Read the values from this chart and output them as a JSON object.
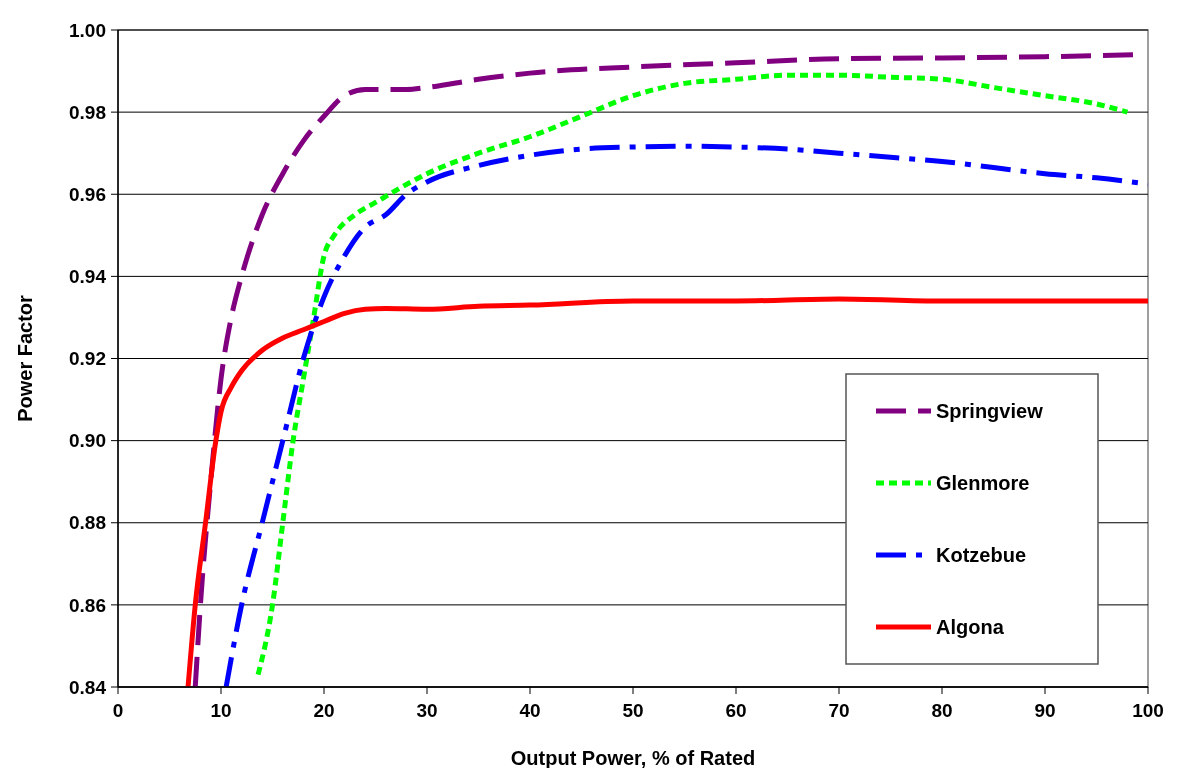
{
  "chart_data": {
    "type": "line",
    "xlabel": "Output Power, % of Rated",
    "ylabel": "Power Factor",
    "xlim": [
      0,
      100
    ],
    "xticks": [
      0,
      10,
      20,
      30,
      40,
      50,
      60,
      70,
      80,
      90,
      100
    ],
    "ylim": [
      0.84,
      1.0
    ],
    "yticks": [
      {
        "value": 0.84,
        "label": "0.84"
      },
      {
        "value": 0.86,
        "label": "0.86"
      },
      {
        "value": 0.88,
        "label": "0.88"
      },
      {
        "value": 0.9,
        "label": "0.90"
      },
      {
        "value": 0.92,
        "label": "0.92"
      },
      {
        "value": 0.94,
        "label": "0.94"
      },
      {
        "value": 0.96,
        "label": "0.96"
      },
      {
        "value": 0.98,
        "label": "0.98"
      },
      {
        "value": 1.0,
        "label": "1.00"
      }
    ],
    "grid": "y",
    "legend": "right",
    "marker": "none",
    "series": [
      {
        "name": "Springview",
        "color": "#800080",
        "line_style": "dashed",
        "x": [
          7.5,
          8,
          9,
          10,
          11,
          12,
          14,
          16,
          18,
          20,
          22,
          24,
          28,
          30,
          35,
          40,
          50,
          60,
          70,
          80,
          90,
          99
        ],
        "values": [
          0.84,
          0.86,
          0.89,
          0.915,
          0.93,
          0.94,
          0.955,
          0.965,
          0.973,
          0.979,
          0.984,
          0.9855,
          0.9855,
          0.986,
          0.988,
          0.9895,
          0.991,
          0.992,
          0.993,
          0.9932,
          0.9935,
          0.994
        ]
      },
      {
        "name": "Glenmore",
        "color": "#00ff00",
        "line_style": "dotted",
        "x": [
          13.6,
          15,
          16,
          17,
          18,
          19,
          20,
          21,
          23,
          25,
          30,
          35,
          40,
          45,
          50,
          55,
          60,
          65,
          70,
          75,
          80,
          85,
          90,
          95,
          98
        ],
        "values": [
          0.843,
          0.86,
          0.88,
          0.9,
          0.915,
          0.93,
          0.945,
          0.95,
          0.955,
          0.958,
          0.965,
          0.97,
          0.974,
          0.979,
          0.984,
          0.987,
          0.988,
          0.989,
          0.989,
          0.9885,
          0.988,
          0.986,
          0.984,
          0.982,
          0.98
        ]
      },
      {
        "name": "Kotzebue",
        "color": "#0000ff",
        "line_style": "dashdot",
        "x": [
          10.5,
          12,
          14,
          16,
          18,
          20,
          22,
          24,
          26,
          28,
          30,
          35,
          40,
          45,
          50,
          55,
          60,
          65,
          70,
          75,
          80,
          85,
          90,
          95,
          100
        ],
        "values": [
          0.84,
          0.86,
          0.88,
          0.9,
          0.92,
          0.935,
          0.945,
          0.952,
          0.955,
          0.96,
          0.963,
          0.967,
          0.9695,
          0.971,
          0.9715,
          0.9717,
          0.9715,
          0.971,
          0.97,
          0.969,
          0.968,
          0.9665,
          0.965,
          0.964,
          0.9625
        ]
      },
      {
        "name": "Algona",
        "color": "#ff0000",
        "line_style": "solid",
        "x": [
          6.8,
          7.5,
          8.5,
          9.5,
          10,
          11,
          12,
          14,
          16,
          18,
          20,
          22,
          24,
          26,
          30,
          35,
          40,
          50,
          60,
          70,
          80,
          90,
          100
        ],
        "values": [
          0.84,
          0.86,
          0.88,
          0.9,
          0.907,
          0.913,
          0.917,
          0.922,
          0.925,
          0.927,
          0.929,
          0.931,
          0.932,
          0.9322,
          0.932,
          0.9327,
          0.933,
          0.934,
          0.934,
          0.9345,
          0.934,
          0.934,
          0.934
        ]
      }
    ]
  }
}
